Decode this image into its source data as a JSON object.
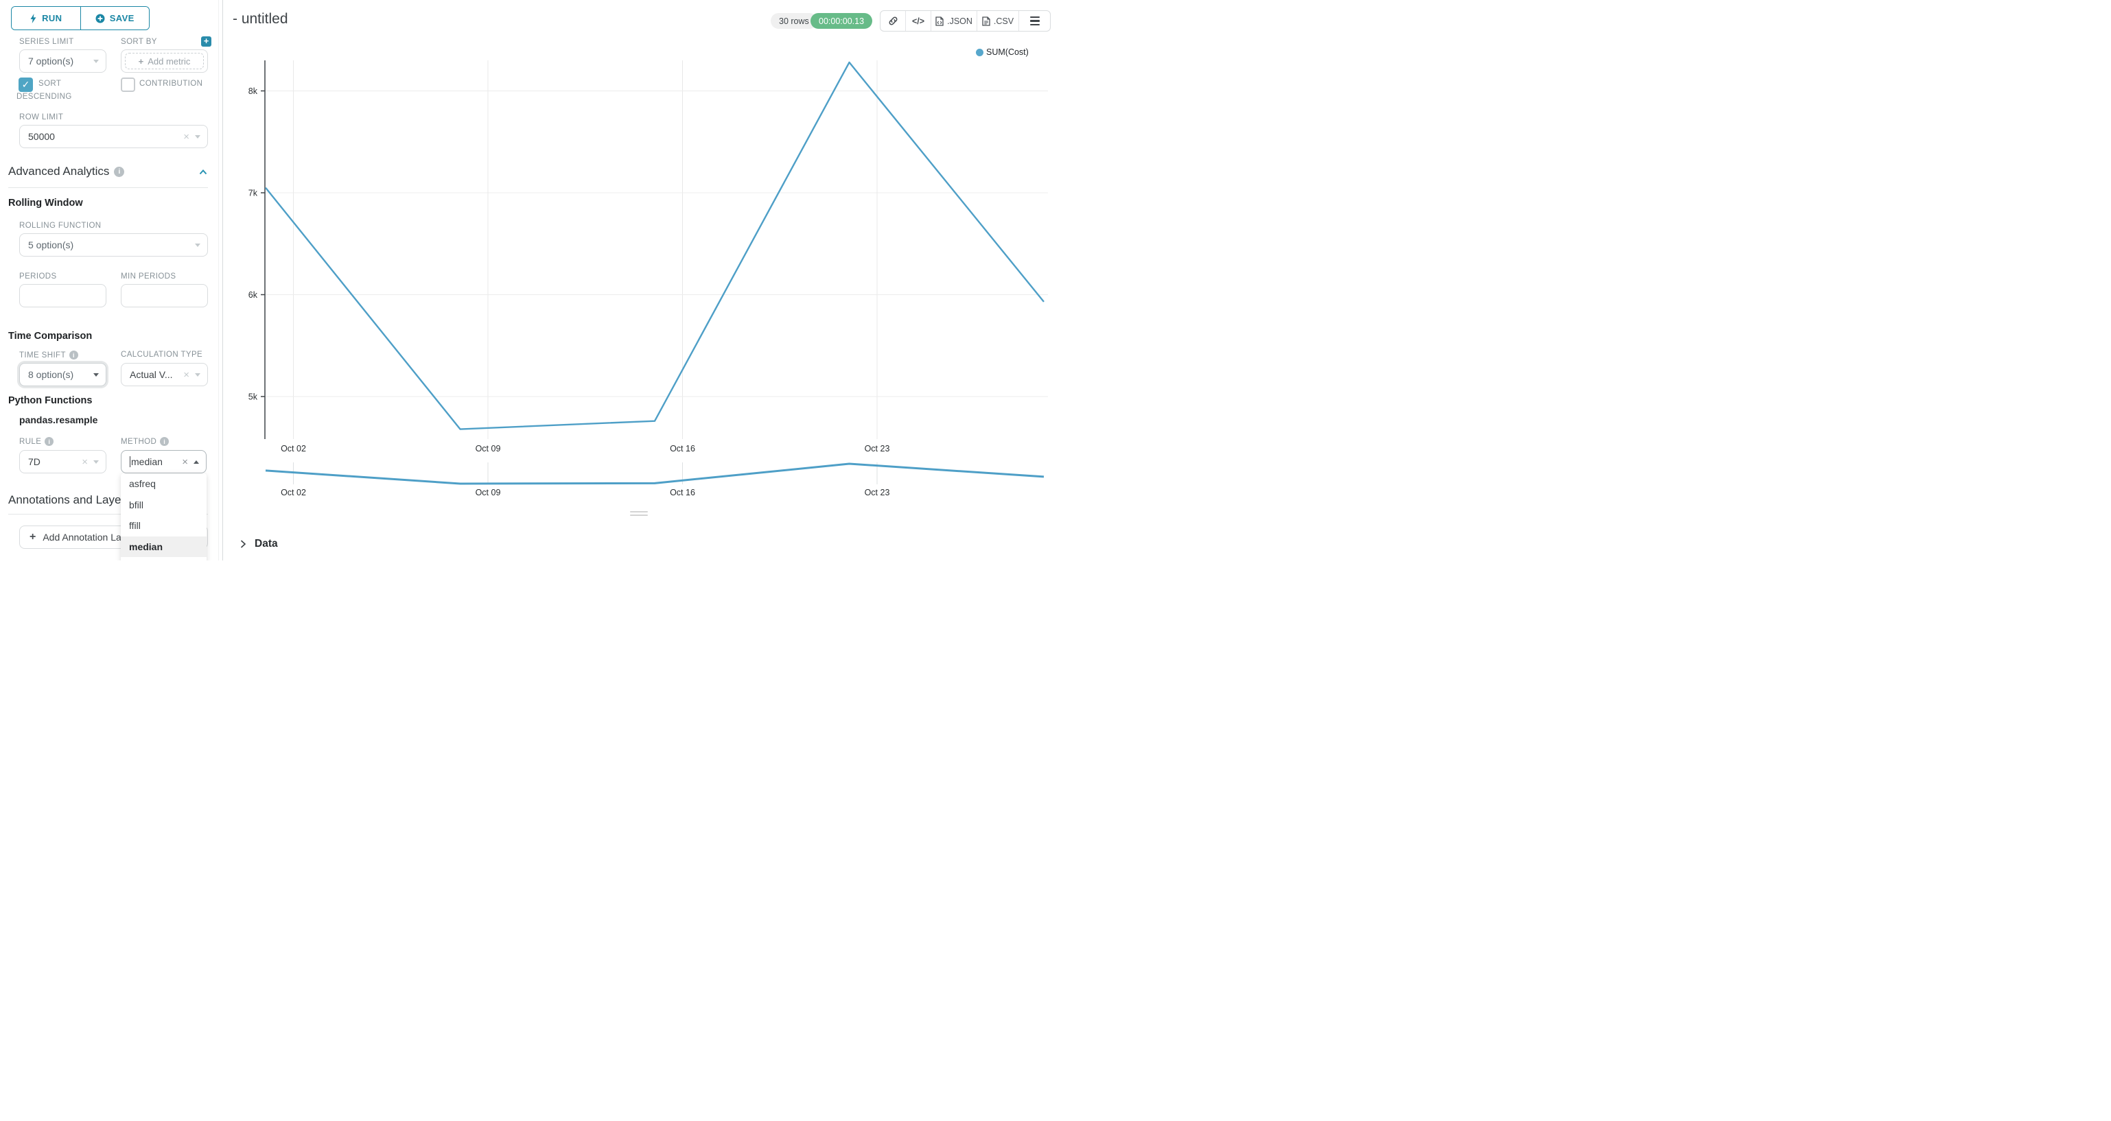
{
  "panel": {
    "run_label": "RUN",
    "save_label": "SAVE",
    "series_limit": {
      "label": "SERIES LIMIT",
      "value": "7 option(s)"
    },
    "sort_by": {
      "label": "SORT BY",
      "placeholder": "Add metric"
    },
    "sort_descending": {
      "label_line1": "SORT",
      "label_line2": "DESCENDING",
      "checked": true
    },
    "contribution": {
      "label": "CONTRIBUTION",
      "checked": false
    },
    "row_limit": {
      "label": "ROW LIMIT",
      "value": "50000"
    },
    "advanced_analytics_title": "Advanced Analytics",
    "rolling_window": {
      "title": "Rolling Window",
      "rolling_function": {
        "label": "ROLLING FUNCTION",
        "value": "5 option(s)"
      },
      "periods_label": "PERIODS",
      "min_periods_label": "MIN PERIODS"
    },
    "time_comparison": {
      "title": "Time Comparison",
      "time_shift": {
        "label": "TIME SHIFT",
        "value": "8 option(s)"
      },
      "calculation_type": {
        "label": "CALCULATION TYPE",
        "value": "Actual V..."
      }
    },
    "python_functions": {
      "title": "Python Functions",
      "subtitle": "pandas.resample",
      "rule": {
        "label": "RULE",
        "value": "7D"
      },
      "method": {
        "label": "METHOD",
        "value": "median"
      }
    },
    "method_dropdown": {
      "options": [
        "asfreq",
        "bfill",
        "ffill",
        "median"
      ],
      "selected": "median"
    },
    "annotations": {
      "title": "Annotations and Layers",
      "add_button_label": "Add Annotation Layer"
    }
  },
  "header": {
    "title": "- untitled",
    "rows_badge": "30 rows",
    "timer_badge": "00:00:00.13",
    "json_label": ".JSON",
    "csv_label": ".CSV",
    "code_glyph": "</>"
  },
  "chart_data": {
    "type": "line",
    "title": "- untitled",
    "legend_position": "top-right",
    "grid": true,
    "legend": [
      {
        "name": "SUM(Cost)",
        "color": "#57a7cc"
      }
    ],
    "series": [
      {
        "name": "SUM(Cost)",
        "color": "#4e9fc7",
        "x_dates": [
          "Oct 01",
          "Oct 08",
          "Oct 15",
          "Oct 22",
          "Oct 29"
        ],
        "x_days": [
          0,
          7,
          14,
          21,
          28
        ],
        "values": [
          7050,
          4680,
          4760,
          8280,
          5930
        ]
      }
    ],
    "x_ticks": [
      {
        "day": 1,
        "label": "Oct 02"
      },
      {
        "day": 8,
        "label": "Oct 09"
      },
      {
        "day": 15,
        "label": "Oct 16"
      },
      {
        "day": 22,
        "label": "Oct 23"
      }
    ],
    "y_ticks": [
      {
        "value": 8000,
        "label": "8k"
      },
      {
        "value": 7000,
        "label": "7k"
      },
      {
        "value": 6000,
        "label": "6k"
      },
      {
        "value": 5000,
        "label": "5k"
      }
    ],
    "ylim": [
      4583,
      8300
    ],
    "has_mini_preview": true
  },
  "data_panel": {
    "title": "Data"
  },
  "colors": {
    "accent_teal": "#1b87a5",
    "checkbox_teal": "#4fa5c4",
    "line_blue": "#4e9fc7",
    "legend_dot_blue": "#57a7cc",
    "timer_green": "#67bb88"
  }
}
